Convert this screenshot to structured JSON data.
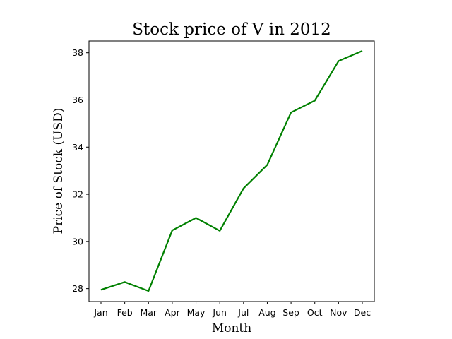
{
  "chart_data": {
    "type": "line",
    "title": "Stock price of V in 2012",
    "xlabel": "Month",
    "ylabel": "Price of Stock (USD)",
    "categories": [
      "Jan",
      "Feb",
      "Mar",
      "Apr",
      "May",
      "Jun",
      "Jul",
      "Aug",
      "Sep",
      "Oct",
      "Nov",
      "Dec"
    ],
    "series": [
      {
        "color": "#008000",
        "values": [
          27.95,
          28.28,
          27.9,
          30.47,
          31.0,
          30.45,
          32.25,
          33.25,
          35.47,
          35.97,
          37.65,
          38.08
        ]
      }
    ],
    "ylim": [
      27.45,
      38.5
    ],
    "yticks": [
      28,
      30,
      32,
      34,
      36,
      38
    ],
    "grid": false
  }
}
